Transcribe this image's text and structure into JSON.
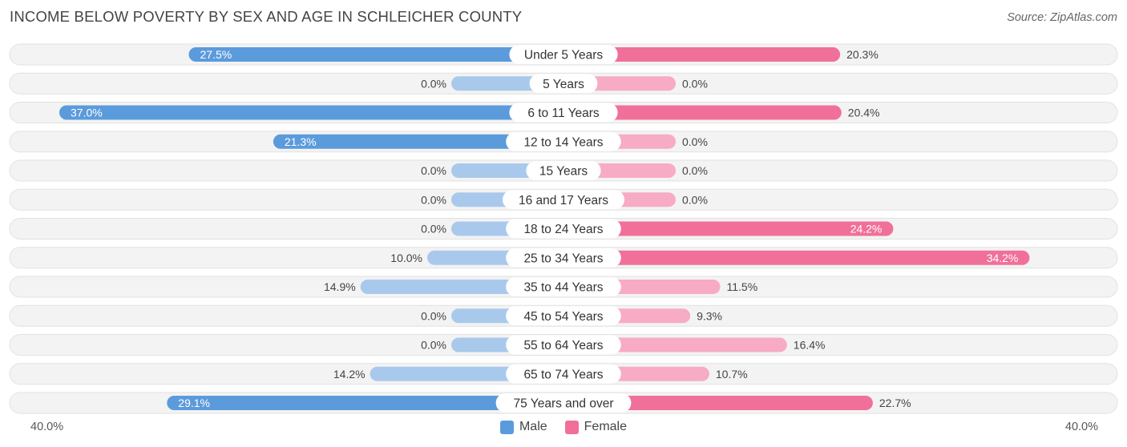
{
  "chart_data": {
    "type": "bar",
    "orientation": "horizontal-diverging",
    "title": "INCOME BELOW POVERTY BY SEX AND AGE IN SCHLEICHER COUNTY",
    "source": "Source: ZipAtlas.com",
    "categories": [
      "Under 5 Years",
      "5 Years",
      "6 to 11 Years",
      "12 to 14 Years",
      "15 Years",
      "16 and 17 Years",
      "18 to 24 Years",
      "25 to 34 Years",
      "35 to 44 Years",
      "45 to 54 Years",
      "55 to 64 Years",
      "65 to 74 Years",
      "75 Years and over"
    ],
    "series": [
      {
        "name": "Male",
        "values": [
          27.5,
          0.0,
          37.0,
          21.3,
          0.0,
          0.0,
          0.0,
          10.0,
          14.9,
          0.0,
          0.0,
          14.2,
          29.1
        ],
        "labels": [
          "27.5%",
          "0.0%",
          "37.0%",
          "21.3%",
          "0.0%",
          "0.0%",
          "0.0%",
          "10.0%",
          "14.9%",
          "0.0%",
          "0.0%",
          "14.2%",
          "29.1%"
        ]
      },
      {
        "name": "Female",
        "values": [
          20.3,
          0.0,
          20.4,
          0.0,
          0.0,
          0.0,
          24.2,
          34.2,
          11.5,
          9.3,
          16.4,
          10.7,
          22.7
        ],
        "labels": [
          "20.3%",
          "0.0%",
          "20.4%",
          "0.0%",
          "0.0%",
          "0.0%",
          "24.2%",
          "34.2%",
          "11.5%",
          "9.3%",
          "16.4%",
          "10.7%",
          "22.7%"
        ]
      }
    ],
    "xlim": [
      -40,
      40
    ],
    "axis_min_label": "40.0%",
    "axis_max_label": "40.0%",
    "legend_position": "bottom-center",
    "colors": {
      "male_strong": "#5b9bdc",
      "male_light": "#a9c9ec",
      "female_strong": "#f07099",
      "female_light": "#f7abc4",
      "row_bg": "#f3f3f3",
      "row_border": "#e2e2e2"
    }
  }
}
